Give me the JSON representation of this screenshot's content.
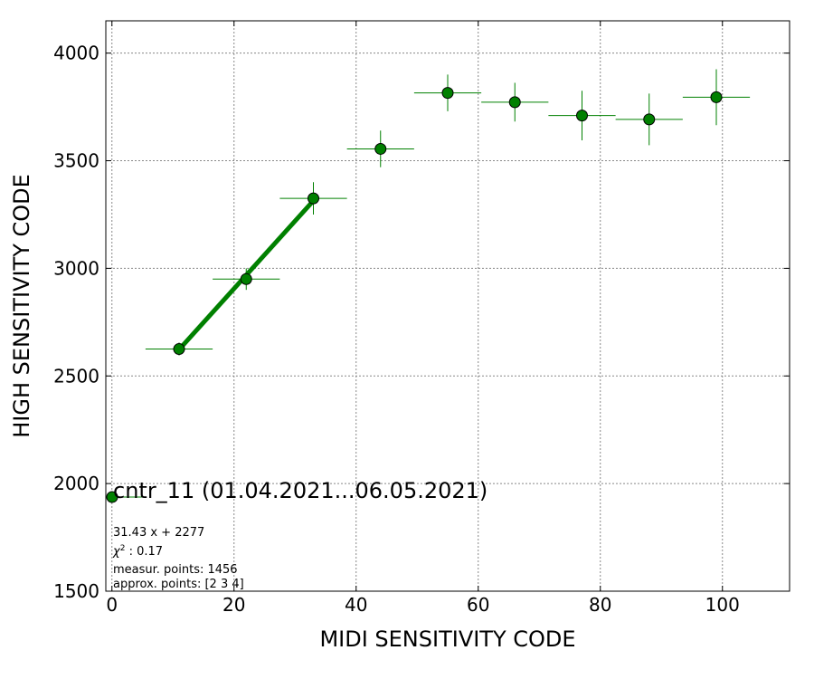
{
  "chart_data": {
    "type": "scatter",
    "xlabel": "MIDI SENSITIVITY CODE",
    "ylabel": "HIGH SENSITIVITY CODE",
    "xlim": [
      -1,
      111
    ],
    "ylim": [
      1500,
      4150
    ],
    "xticks": [
      0,
      20,
      40,
      60,
      80,
      100
    ],
    "yticks": [
      1500,
      2000,
      2500,
      3000,
      3500,
      4000
    ],
    "grid": true,
    "marker_color": "#008000",
    "fit_line_color": "#008000",
    "series": [
      {
        "name": "cntr_11 (01.04.2021...06.05.2021)",
        "points": [
          {
            "x": 11,
            "y": 2625,
            "xerr": 5.5,
            "yerr": 30
          },
          {
            "x": 22,
            "y": 2950,
            "xerr": 5.5,
            "yerr": 50
          },
          {
            "x": 33,
            "y": 3325,
            "xerr": 5.5,
            "yerr": 75
          },
          {
            "x": 44,
            "y": 3555,
            "xerr": 5.5,
            "yerr": 85
          },
          {
            "x": 55,
            "y": 3815,
            "xerr": 5.5,
            "yerr": 85
          },
          {
            "x": 66,
            "y": 3772,
            "xerr": 5.5,
            "yerr": 90
          },
          {
            "x": 77,
            "y": 3710,
            "xerr": 5.5,
            "yerr": 115
          },
          {
            "x": 88,
            "y": 3692,
            "xerr": 5.5,
            "yerr": 120
          },
          {
            "x": 99,
            "y": 3795,
            "xerr": 5.5,
            "yerr": 130
          }
        ]
      }
    ],
    "fit": {
      "slope": 31.43,
      "intercept": 2277,
      "x_range": [
        11,
        33
      ]
    },
    "legend": {
      "label": "cntr_11 (01.04.2021...06.05.2021)",
      "placement": "lower-left"
    },
    "annotations": [
      "31.43 x + 2277",
      "χ2 : 0.17",
      "measur. points: 1456",
      "approx. points: [2 3 4]"
    ]
  }
}
